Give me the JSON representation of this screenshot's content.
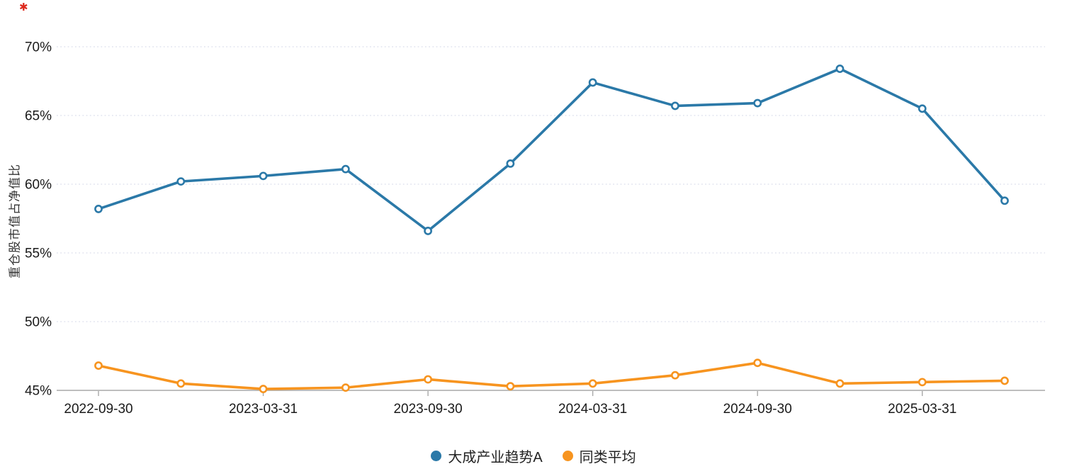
{
  "page": {
    "corner_mark": "✱"
  },
  "chart_data": {
    "type": "line",
    "title": "",
    "xlabel": "",
    "ylabel": "重仓股市值占净值比",
    "ylim": [
      45,
      70
    ],
    "grid": "horizontal-dotted",
    "legend_position": "bottom-center",
    "x": [
      "2022-09-30",
      "2022-12-31",
      "2023-03-31",
      "2023-06-30",
      "2023-09-30",
      "2023-12-31",
      "2024-03-31",
      "2024-06-30",
      "2024-09-30",
      "2024-12-31",
      "2025-03-31",
      "2025-06-30"
    ],
    "x_tick_labels": [
      "2022-09-30",
      "2023-03-31",
      "2023-09-30",
      "2024-03-31",
      "2024-09-30",
      "2025-03-31"
    ],
    "x_tick_point_indices": [
      0,
      2,
      4,
      6,
      8,
      10
    ],
    "yticks": [
      {
        "value": 45,
        "label": "45%"
      },
      {
        "value": 50,
        "label": "50%"
      },
      {
        "value": 55,
        "label": "55%"
      },
      {
        "value": 60,
        "label": "60%"
      },
      {
        "value": 65,
        "label": "65%"
      },
      {
        "value": 70,
        "label": "70%"
      }
    ],
    "series": [
      {
        "name": "大成产业趋势A",
        "color": "#2b79a8",
        "values": [
          58.2,
          60.2,
          60.6,
          61.1,
          56.6,
          61.5,
          67.4,
          65.7,
          65.9,
          68.4,
          65.5,
          58.8
        ]
      },
      {
        "name": "同类平均",
        "color": "#f7941f",
        "values": [
          46.8,
          45.5,
          45.1,
          45.2,
          45.8,
          45.3,
          45.5,
          46.1,
          47.0,
          45.5,
          45.6,
          45.7
        ]
      }
    ]
  }
}
